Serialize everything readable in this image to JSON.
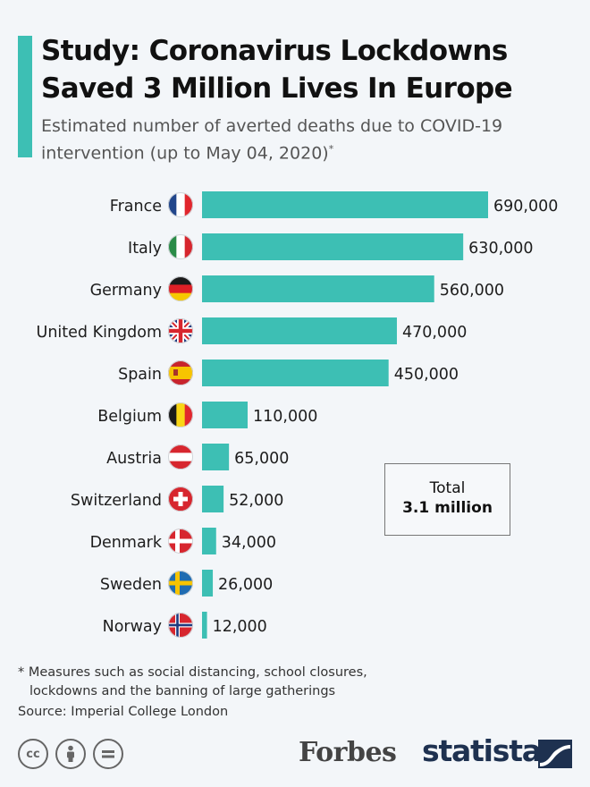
{
  "header": {
    "title_line1": "Study: Coronavirus Lockdowns",
    "title_line2": "Saved 3 Million Lives In Europe",
    "subtitle_line1": "Estimated number of averted deaths due to COVID-19",
    "subtitle_line2": "intervention (up to May 04, 2020)",
    "subtitle_mark": "*"
  },
  "chart_data": {
    "type": "bar",
    "orientation": "horizontal",
    "title": "Estimated number of averted deaths due to COVID-19 intervention (up to May 04, 2020)",
    "categories": [
      "France",
      "Italy",
      "Germany",
      "United Kingdom",
      "Spain",
      "Belgium",
      "Austria",
      "Switzerland",
      "Denmark",
      "Sweden",
      "Norway"
    ],
    "values": [
      690000,
      630000,
      560000,
      470000,
      450000,
      110000,
      65000,
      52000,
      34000,
      26000,
      12000
    ],
    "value_labels": [
      "690,000",
      "630,000",
      "560,000",
      "470,000",
      "450,000",
      "110,000",
      "65,000",
      "52,000",
      "34,000",
      "26,000",
      "12,000"
    ],
    "flags": [
      "france-flag-icon",
      "italy-flag-icon",
      "germany-flag-icon",
      "uk-flag-icon",
      "spain-flag-icon",
      "belgium-flag-icon",
      "austria-flag-icon",
      "switzerland-flag-icon",
      "denmark-flag-icon",
      "sweden-flag-icon",
      "norway-flag-icon"
    ],
    "xlim": [
      0,
      690000
    ],
    "bar_color": "#3dbfb4",
    "grid": false,
    "xlabel": "",
    "ylabel": ""
  },
  "total": {
    "label": "Total",
    "value": "3.1 million"
  },
  "footer": {
    "footnote_line1": "* Measures such as social distancing, school closures,",
    "footnote_line2": "lockdowns and the banning of large gatherings",
    "source": "Source: Imperial College London",
    "cc_icons": [
      "cc-icon",
      "attribution-icon",
      "no-derivatives-icon"
    ],
    "forbes_logo": "Forbes",
    "statista_logo": "statista"
  },
  "colors": {
    "accent": "#3dbfb4",
    "brand_dark": "#1e3150"
  }
}
